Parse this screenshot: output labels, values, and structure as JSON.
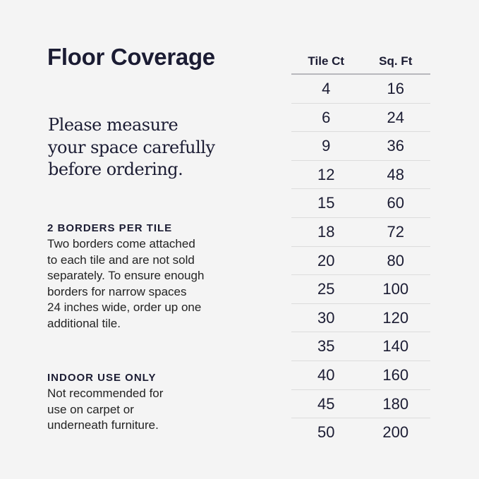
{
  "title": "Floor Coverage",
  "intro_lines": [
    "Please measure",
    "your space carefully",
    "before ordering."
  ],
  "sections": [
    {
      "heading": "2 BORDERS PER TILE",
      "lines": [
        "Two borders come attached",
        "to each tile and are not sold",
        "separately. To ensure enough",
        "borders for narrow spaces",
        "24 inches wide, order up one",
        "additional tile."
      ]
    },
    {
      "heading": "INDOOR USE ONLY",
      "lines": [
        "Not recommended for",
        "use on carpet or",
        "underneath furniture."
      ]
    }
  ],
  "table": {
    "headers": [
      "Tile Ct",
      "Sq. Ft"
    ],
    "rows": [
      [
        "4",
        "16"
      ],
      [
        "6",
        "24"
      ],
      [
        "9",
        "36"
      ],
      [
        "12",
        "48"
      ],
      [
        "15",
        "60"
      ],
      [
        "18",
        "72"
      ],
      [
        "20",
        "80"
      ],
      [
        "25",
        "100"
      ],
      [
        "30",
        "120"
      ],
      [
        "35",
        "140"
      ],
      [
        "40",
        "160"
      ],
      [
        "45",
        "180"
      ],
      [
        "50",
        "200"
      ]
    ]
  }
}
